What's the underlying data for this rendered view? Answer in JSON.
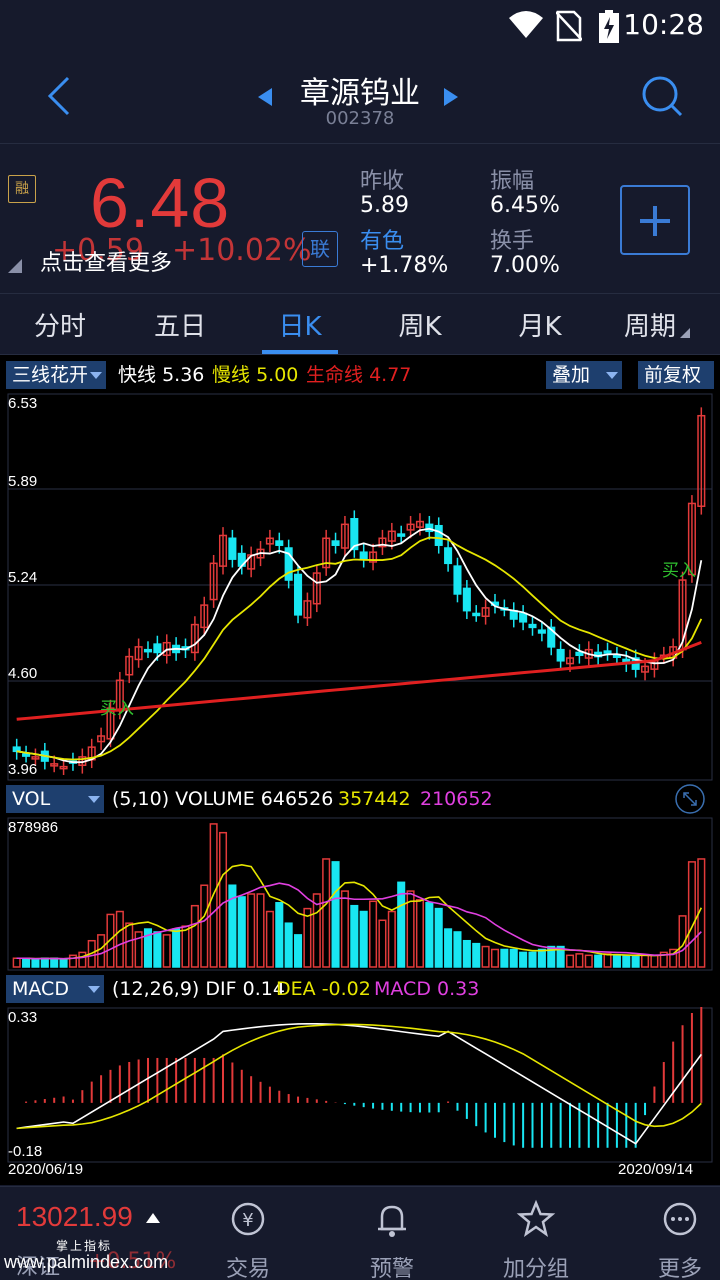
{
  "status_bar": {
    "time": "10:28"
  },
  "header": {
    "title": "章源钨业",
    "code": "002378"
  },
  "quote": {
    "margin_badge": "融",
    "price": "6.48",
    "change": "+0.59",
    "change_pct": "+10.02%",
    "tip": "点击查看更多",
    "link_badge": "联",
    "stats": [
      {
        "label": "昨收",
        "value": "5.89"
      },
      {
        "label": "振幅",
        "value": "6.45%"
      },
      {
        "label": "有色",
        "value": "+1.78%"
      },
      {
        "label": "换手",
        "value": "7.00%"
      }
    ]
  },
  "tabs": [
    "分时",
    "五日",
    "日K",
    "周K",
    "月K",
    "周期"
  ],
  "indicator_bar": {
    "select": "三线花开",
    "fast_label": "快线",
    "fast_value": "5.36",
    "slow_label": "慢线",
    "slow_value": "5.00",
    "life_label": "生命线",
    "life_value": "4.77",
    "overlay": "叠加",
    "adjust": "前复权"
  },
  "price_axis": [
    "6.53",
    "5.89",
    "5.24",
    "4.60",
    "3.96"
  ],
  "buy_label": "买入",
  "vol_bar": {
    "select": "VOL",
    "params": "(5,10) VOLUME",
    "volume": "646526",
    "ma5": "357442",
    "ma10": "210652"
  },
  "vol_axis_max": "878986",
  "macd_bar": {
    "select": "MACD",
    "params": "(12,26,9) DIF",
    "dif": "0.14",
    "dea_label": "DEA",
    "dea": "-0.02",
    "macd_label": "MACD",
    "macd": "0.33"
  },
  "macd_axis": [
    "0.33",
    "-0.18"
  ],
  "dates": {
    "start": "2020/06/19",
    "end": "2020/09/14"
  },
  "bottom_nav": {
    "index_value": "13021.99",
    "index_sub": "掌上指标",
    "index_name": "深证",
    "index_chg": "+0.51%",
    "items": [
      "交易",
      "预警",
      "加分组",
      "更多"
    ]
  },
  "watermark": "www.palmindex.com",
  "colors": {
    "up": "#e23a3a",
    "down": "#19e6f2",
    "accent": "#3a8ef0",
    "ma_fast": "#ffffff",
    "ma_slow": "#e6e600",
    "ma_life": "#e02020",
    "ma10_vol": "#e040e0"
  }
}
